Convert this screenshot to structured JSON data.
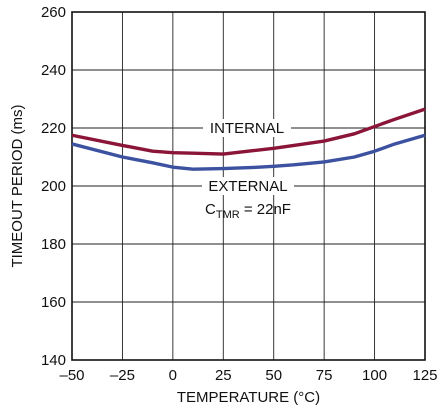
{
  "chart_data": {
    "type": "line",
    "title": "",
    "xlabel": "TEMPERATURE (°C)",
    "ylabel": "TIMEOUT PERIOD (ms)",
    "xlim": [
      -50,
      125
    ],
    "ylim": [
      140,
      260
    ],
    "xticks": [
      -50,
      -25,
      0,
      25,
      50,
      75,
      100,
      125
    ],
    "yticks": [
      140,
      160,
      180,
      200,
      220,
      240,
      260
    ],
    "xtick_labels": [
      "–50",
      "–25",
      "0",
      "25",
      "50",
      "75",
      "100",
      "125"
    ],
    "ytick_labels": [
      "140",
      "160",
      "180",
      "200",
      "220",
      "240",
      "260"
    ],
    "grid": true,
    "series": [
      {
        "name": "INTERNAL",
        "color": "#8b1538",
        "x": [
          -50,
          -25,
          -10,
          0,
          10,
          25,
          40,
          50,
          60,
          75,
          90,
          100,
          110,
          125
        ],
        "y": [
          217.5,
          214,
          212,
          211.5,
          211.3,
          211,
          212.2,
          213,
          214,
          215.5,
          218,
          220.5,
          223,
          226.5
        ]
      },
      {
        "name": "EXTERNAL",
        "color": "#3c52a0",
        "x": [
          -50,
          -25,
          -10,
          0,
          10,
          25,
          40,
          50,
          60,
          75,
          90,
          100,
          110,
          125
        ],
        "y": [
          214.5,
          210,
          208,
          206.5,
          205.8,
          206,
          206.4,
          206.8,
          207.3,
          208.3,
          210,
          212,
          214.5,
          217.5
        ]
      }
    ],
    "annotations": {
      "internal_label": "INTERNAL",
      "external_label": "EXTERNAL",
      "ctmr_main": "C",
      "ctmr_sub": "TMR",
      "ctmr_rest": " = 22nF"
    }
  }
}
